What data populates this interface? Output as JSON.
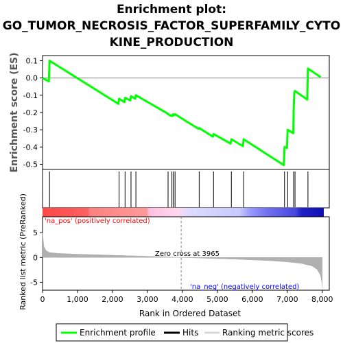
{
  "title_lines": [
    "Enrichment plot:",
    "GO_TUMOR_NECROSIS_FACTOR_SUPERFAMILY_CYTO",
    "KINE_PRODUCTION"
  ],
  "colors": {
    "enrichment_line": "#00ff00",
    "hits": "#000000",
    "metric_fill": "#b0b0b0",
    "pos_label": "#ff0000",
    "neg_label": "#0000ff",
    "zero_line": "#808080"
  },
  "chart_data": {
    "type": "line",
    "title": "Enrichment plot: GO_TUMOR_NECROSIS_FACTOR_SUPERFAMILY_CYTOKINE_PRODUCTION",
    "xlabel": "Rank in Ordered Dataset",
    "xlim": [
      0,
      8200
    ],
    "x_ticks": [
      0,
      1000,
      2000,
      3000,
      4000,
      5000,
      6000,
      7000,
      8000
    ],
    "tick_labels": {
      "x": [
        "0",
        "1,000",
        "2,000",
        "3,000",
        "4,000",
        "5,000",
        "6,000",
        "7,000",
        "8,000"
      ],
      "es": [
        "0.1",
        "0.0",
        "-0.1",
        "-0.2",
        "-0.3",
        "-0.4",
        "-0.5"
      ],
      "metric": [
        "5",
        "0",
        "-5"
      ]
    },
    "es_panel": {
      "ylabel": "Enrichment score (ES)",
      "ylim": [
        -0.53,
        0.13
      ],
      "y_ticks": [
        0.1,
        0.0,
        -0.1,
        -0.2,
        -0.3,
        -0.4,
        -0.5
      ],
      "series": [
        {
          "name": "Enrichment profile",
          "x": [
            0,
            180,
            200,
            2170,
            2190,
            2340,
            2360,
            2510,
            2530,
            2650,
            2670,
            3570,
            3590,
            3680,
            3700,
            3720,
            3740,
            3770,
            3790,
            4460,
            4480,
            4870,
            4890,
            5380,
            5400,
            5730,
            5750,
            6900,
            6920,
            6990,
            7010,
            7170,
            7180,
            7200,
            7220,
            7570,
            7590,
            7950
          ],
          "y": [
            0.0,
            -0.02,
            0.1,
            -0.15,
            -0.12,
            -0.14,
            -0.115,
            -0.13,
            -0.105,
            -0.12,
            -0.1,
            -0.205,
            -0.21,
            -0.22,
            -0.215,
            -0.22,
            -0.21,
            -0.215,
            -0.21,
            -0.295,
            -0.29,
            -0.34,
            -0.325,
            -0.38,
            -0.355,
            -0.395,
            -0.355,
            -0.505,
            -0.4,
            -0.405,
            -0.3,
            -0.32,
            -0.2,
            -0.085,
            -0.075,
            -0.125,
            0.055,
            0.005
          ]
        }
      ]
    },
    "hits": [
      200,
      2190,
      2360,
      2530,
      2670,
      3590,
      3700,
      3740,
      3790,
      4480,
      4890,
      5400,
      5750,
      6920,
      7010,
      7180,
      7220,
      7590
    ],
    "metric_panel": {
      "ylabel": "Ranked list metric (PreRanked)",
      "ylim": [
        -6.6,
        8.2
      ],
      "y_ticks": [
        5,
        0,
        -5
      ],
      "series_name": "Ranking metric scores",
      "curve_x": [
        0,
        40,
        100,
        200,
        400,
        800,
        1500,
        2500,
        3500,
        3965,
        4500,
        5500,
        6500,
        7000,
        7400,
        7700,
        7850,
        7950,
        7990,
        8000
      ],
      "curve_y": [
        5.0,
        2.2,
        1.4,
        1.0,
        0.85,
        0.7,
        0.55,
        0.35,
        0.12,
        0.0,
        -0.12,
        -0.35,
        -0.65,
        -0.9,
        -1.2,
        -1.7,
        -2.4,
        -3.6,
        -5.2,
        -6.2
      ],
      "zero_cross": 3965,
      "zero_cross_label": "Zero cross at 3965",
      "pos_label": "'na_pos' (positively correlated)",
      "neg_label": "'na_neg' (negatively correlated)"
    },
    "legend": {
      "placement": "bottom",
      "items": [
        "Enrichment profile",
        "Hits",
        "Ranking metric scores"
      ]
    }
  }
}
